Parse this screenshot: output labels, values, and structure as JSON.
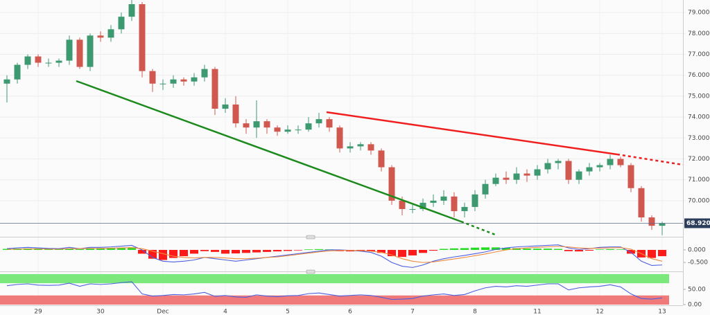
{
  "chart_data": [
    {
      "type": "candlestick",
      "categories": [
        null,
        null,
        null,
        "29",
        null,
        null,
        null,
        null,
        null,
        "30",
        null,
        null,
        null,
        null,
        null,
        "Dec",
        null,
        null,
        null,
        null,
        null,
        "4",
        null,
        null,
        null,
        null,
        null,
        "5",
        null,
        null,
        null,
        null,
        null,
        "6",
        null,
        null,
        null,
        null,
        null,
        "7",
        null,
        null,
        null,
        null,
        null,
        "8",
        null,
        null,
        null,
        null,
        null,
        "11",
        null,
        null,
        null,
        null,
        null,
        "12",
        null,
        null,
        null,
        null,
        null,
        "13"
      ],
      "open": [
        75.6,
        75.8,
        76.5,
        76.9,
        76.6,
        76.6,
        76.7,
        77.7,
        76.4,
        77.9,
        77.8,
        78.2,
        78.8,
        79.4,
        76.2,
        75.6,
        75.6,
        75.8,
        75.7,
        75.9,
        76.3,
        74.4,
        74.6,
        73.7,
        73.5,
        73.8,
        73.5,
        73.3,
        73.4,
        73.4,
        73.7,
        73.9,
        73.5,
        72.5,
        72.6,
        72.7,
        72.4,
        71.6,
        70.0,
        69.6,
        69.6,
        69.9,
        70.0,
        70.2,
        69.5,
        69.7,
        70.3,
        70.8,
        71.1,
        71.0,
        71.3,
        71.2,
        71.5,
        71.8,
        71.9,
        71.0,
        71.4,
        71.6,
        71.7,
        72.0,
        71.7,
        70.6,
        69.2,
        68.8
      ],
      "high": [
        76.0,
        76.6,
        77.0,
        77.0,
        76.8,
        76.8,
        77.9,
        77.8,
        78.0,
        78.1,
        78.4,
        79.0,
        79.6,
        79.5,
        76.3,
        75.8,
        76.0,
        75.9,
        76.1,
        76.5,
        76.4,
        74.9,
        75.0,
        73.9,
        74.8,
        73.9,
        73.6,
        73.6,
        73.6,
        74.0,
        74.2,
        74.0,
        73.6,
        72.8,
        72.8,
        72.8,
        72.5,
        71.7,
        70.2,
        69.8,
        70.1,
        70.3,
        70.5,
        70.4,
        69.9,
        70.5,
        71.0,
        71.3,
        71.4,
        71.6,
        71.5,
        71.7,
        72.0,
        72.0,
        72.0,
        71.5,
        71.8,
        71.8,
        72.2,
        72.1,
        71.8,
        70.7,
        69.3,
        69.0
      ],
      "low": [
        74.7,
        75.6,
        76.3,
        76.4,
        76.4,
        76.4,
        76.5,
        76.3,
        76.2,
        77.6,
        77.6,
        78.0,
        78.6,
        75.9,
        75.2,
        75.3,
        75.4,
        75.5,
        75.5,
        75.7,
        74.1,
        74.2,
        73.5,
        73.2,
        73.0,
        73.2,
        73.1,
        73.2,
        73.2,
        73.3,
        73.5,
        73.3,
        72.3,
        72.3,
        72.4,
        72.2,
        71.4,
        69.8,
        69.3,
        69.4,
        69.5,
        69.7,
        69.8,
        69.2,
        69.2,
        69.5,
        70.1,
        70.7,
        70.8,
        70.8,
        70.9,
        71.0,
        71.3,
        71.5,
        70.8,
        70.8,
        71.2,
        71.4,
        71.5,
        71.6,
        70.4,
        69.0,
        68.6,
        68.35
      ],
      "close": [
        75.8,
        76.5,
        76.9,
        76.6,
        76.6,
        76.7,
        77.7,
        76.4,
        77.9,
        77.8,
        78.2,
        78.8,
        79.4,
        76.2,
        75.6,
        75.6,
        75.8,
        75.7,
        75.9,
        76.3,
        74.4,
        74.6,
        73.7,
        73.5,
        73.8,
        73.5,
        73.3,
        73.4,
        73.4,
        73.7,
        73.9,
        73.5,
        72.5,
        72.6,
        72.7,
        72.4,
        71.6,
        70.0,
        69.6,
        69.6,
        69.9,
        70.0,
        70.2,
        69.5,
        69.7,
        70.3,
        70.8,
        71.1,
        71.0,
        71.3,
        71.2,
        71.5,
        71.8,
        71.9,
        71.0,
        71.4,
        71.6,
        71.7,
        72.0,
        71.7,
        70.6,
        69.2,
        68.8,
        68.92
      ],
      "up_color": "#3d9970",
      "down_color": "#d0584f",
      "last_price_label": "68.920",
      "ylim": [
        68.34,
        79.6
      ],
      "yticks": [
        {
          "value": 70,
          "label": "70.000"
        },
        {
          "value": 71,
          "label": "71.000"
        },
        {
          "value": 72,
          "label": "72.000"
        },
        {
          "value": 73,
          "label": "73.000"
        },
        {
          "value": 74,
          "label": "74.000"
        },
        {
          "value": 75,
          "label": "75.000"
        },
        {
          "value": 76,
          "label": "76.000"
        },
        {
          "value": 77,
          "label": "77.000"
        },
        {
          "value": 78,
          "label": "78.000"
        },
        {
          "value": 79,
          "label": "79.000"
        }
      ],
      "grid": true
    },
    {
      "type": "macd",
      "histogram": [
        0.04,
        0.05,
        0.06,
        0.06,
        0.05,
        0.04,
        0.05,
        0.03,
        0.05,
        0.06,
        0.07,
        0.08,
        0.1,
        -0.15,
        -0.35,
        -0.4,
        -0.32,
        -0.25,
        -0.15,
        -0.05,
        -0.08,
        -0.15,
        -0.14,
        -0.12,
        -0.1,
        -0.08,
        -0.06,
        -0.04,
        -0.02,
        0.02,
        0.03,
        0.02,
        -0.05,
        -0.06,
        -0.05,
        -0.05,
        -0.12,
        -0.25,
        -0.28,
        -0.22,
        -0.12,
        -0.03,
        0.04,
        0.06,
        0.07,
        0.09,
        0.1,
        0.1,
        0.08,
        0.07,
        0.05,
        0.05,
        0.05,
        0.04,
        -0.05,
        -0.06,
        -0.03,
        0.02,
        0.03,
        0.02,
        -0.15,
        -0.3,
        -0.32,
        -0.25
      ],
      "pos_color": "#22dd22",
      "neg_color": "#ff1a1a",
      "series": [
        {
          "color": "#4b5fe0",
          "values": [
            0.05,
            0.08,
            0.1,
            0.08,
            0.06,
            0.05,
            0.1,
            0.05,
            0.1,
            0.1,
            0.12,
            0.15,
            0.18,
            0.0,
            -0.3,
            -0.45,
            -0.48,
            -0.45,
            -0.4,
            -0.3,
            -0.35,
            -0.4,
            -0.45,
            -0.4,
            -0.35,
            -0.3,
            -0.25,
            -0.2,
            -0.15,
            -0.1,
            -0.05,
            0.0,
            0.0,
            -0.02,
            -0.05,
            -0.1,
            -0.25,
            -0.5,
            -0.65,
            -0.7,
            -0.6,
            -0.45,
            -0.35,
            -0.28,
            -0.22,
            -0.15,
            -0.08,
            0.02,
            0.08,
            0.12,
            0.14,
            0.16,
            0.18,
            0.2,
            0.08,
            0.02,
            0.05,
            0.1,
            0.12,
            0.12,
            -0.1,
            -0.45,
            -0.62,
            -0.6
          ]
        },
        {
          "color": "#f08a3c",
          "values": [
            0.02,
            0.03,
            0.04,
            0.04,
            0.03,
            0.03,
            0.05,
            0.05,
            0.06,
            0.06,
            0.07,
            0.08,
            0.09,
            0.05,
            -0.05,
            -0.15,
            -0.25,
            -0.3,
            -0.32,
            -0.3,
            -0.3,
            -0.32,
            -0.35,
            -0.35,
            -0.33,
            -0.3,
            -0.28,
            -0.23,
            -0.18,
            -0.13,
            -0.08,
            -0.04,
            -0.02,
            -0.02,
            -0.03,
            -0.05,
            -0.1,
            -0.2,
            -0.35,
            -0.45,
            -0.5,
            -0.48,
            -0.42,
            -0.36,
            -0.3,
            -0.23,
            -0.16,
            -0.08,
            0.0,
            0.05,
            0.08,
            0.1,
            0.12,
            0.14,
            0.12,
            0.08,
            0.06,
            0.07,
            0.08,
            0.09,
            0.03,
            -0.15,
            -0.35,
            -0.45
          ]
        }
      ],
      "ylim": [
        -0.8,
        0.44
      ],
      "yticks": [
        {
          "value": 0,
          "label": "0.000"
        },
        {
          "value": -0.5,
          "label": "-0.500"
        }
      ]
    },
    {
      "type": "oscillator",
      "bands": [
        {
          "from": 70,
          "to": 100,
          "color": "#7be87b"
        },
        {
          "from": 0,
          "to": 30,
          "color": "#f07a7a"
        }
      ],
      "series": [
        {
          "color": "#4b5fe0",
          "values": [
            62,
            66,
            68,
            64,
            63,
            64,
            70,
            60,
            68,
            66,
            68,
            72,
            75,
            35,
            28,
            30,
            33,
            32,
            35,
            40,
            27,
            30,
            25,
            24,
            32,
            28,
            26,
            29,
            30,
            36,
            38,
            33,
            28,
            30,
            32,
            30,
            24,
            17,
            18,
            20,
            28,
            32,
            35,
            30,
            33,
            45,
            55,
            60,
            58,
            62,
            60,
            64,
            68,
            68,
            48,
            55,
            58,
            60,
            65,
            58,
            35,
            20,
            18,
            22
          ]
        }
      ],
      "ylim": [
        0,
        102
      ],
      "yticks": [
        {
          "value": 50,
          "label": "50.00"
        },
        {
          "value": 0,
          "label": "0.00"
        }
      ]
    }
  ]
}
